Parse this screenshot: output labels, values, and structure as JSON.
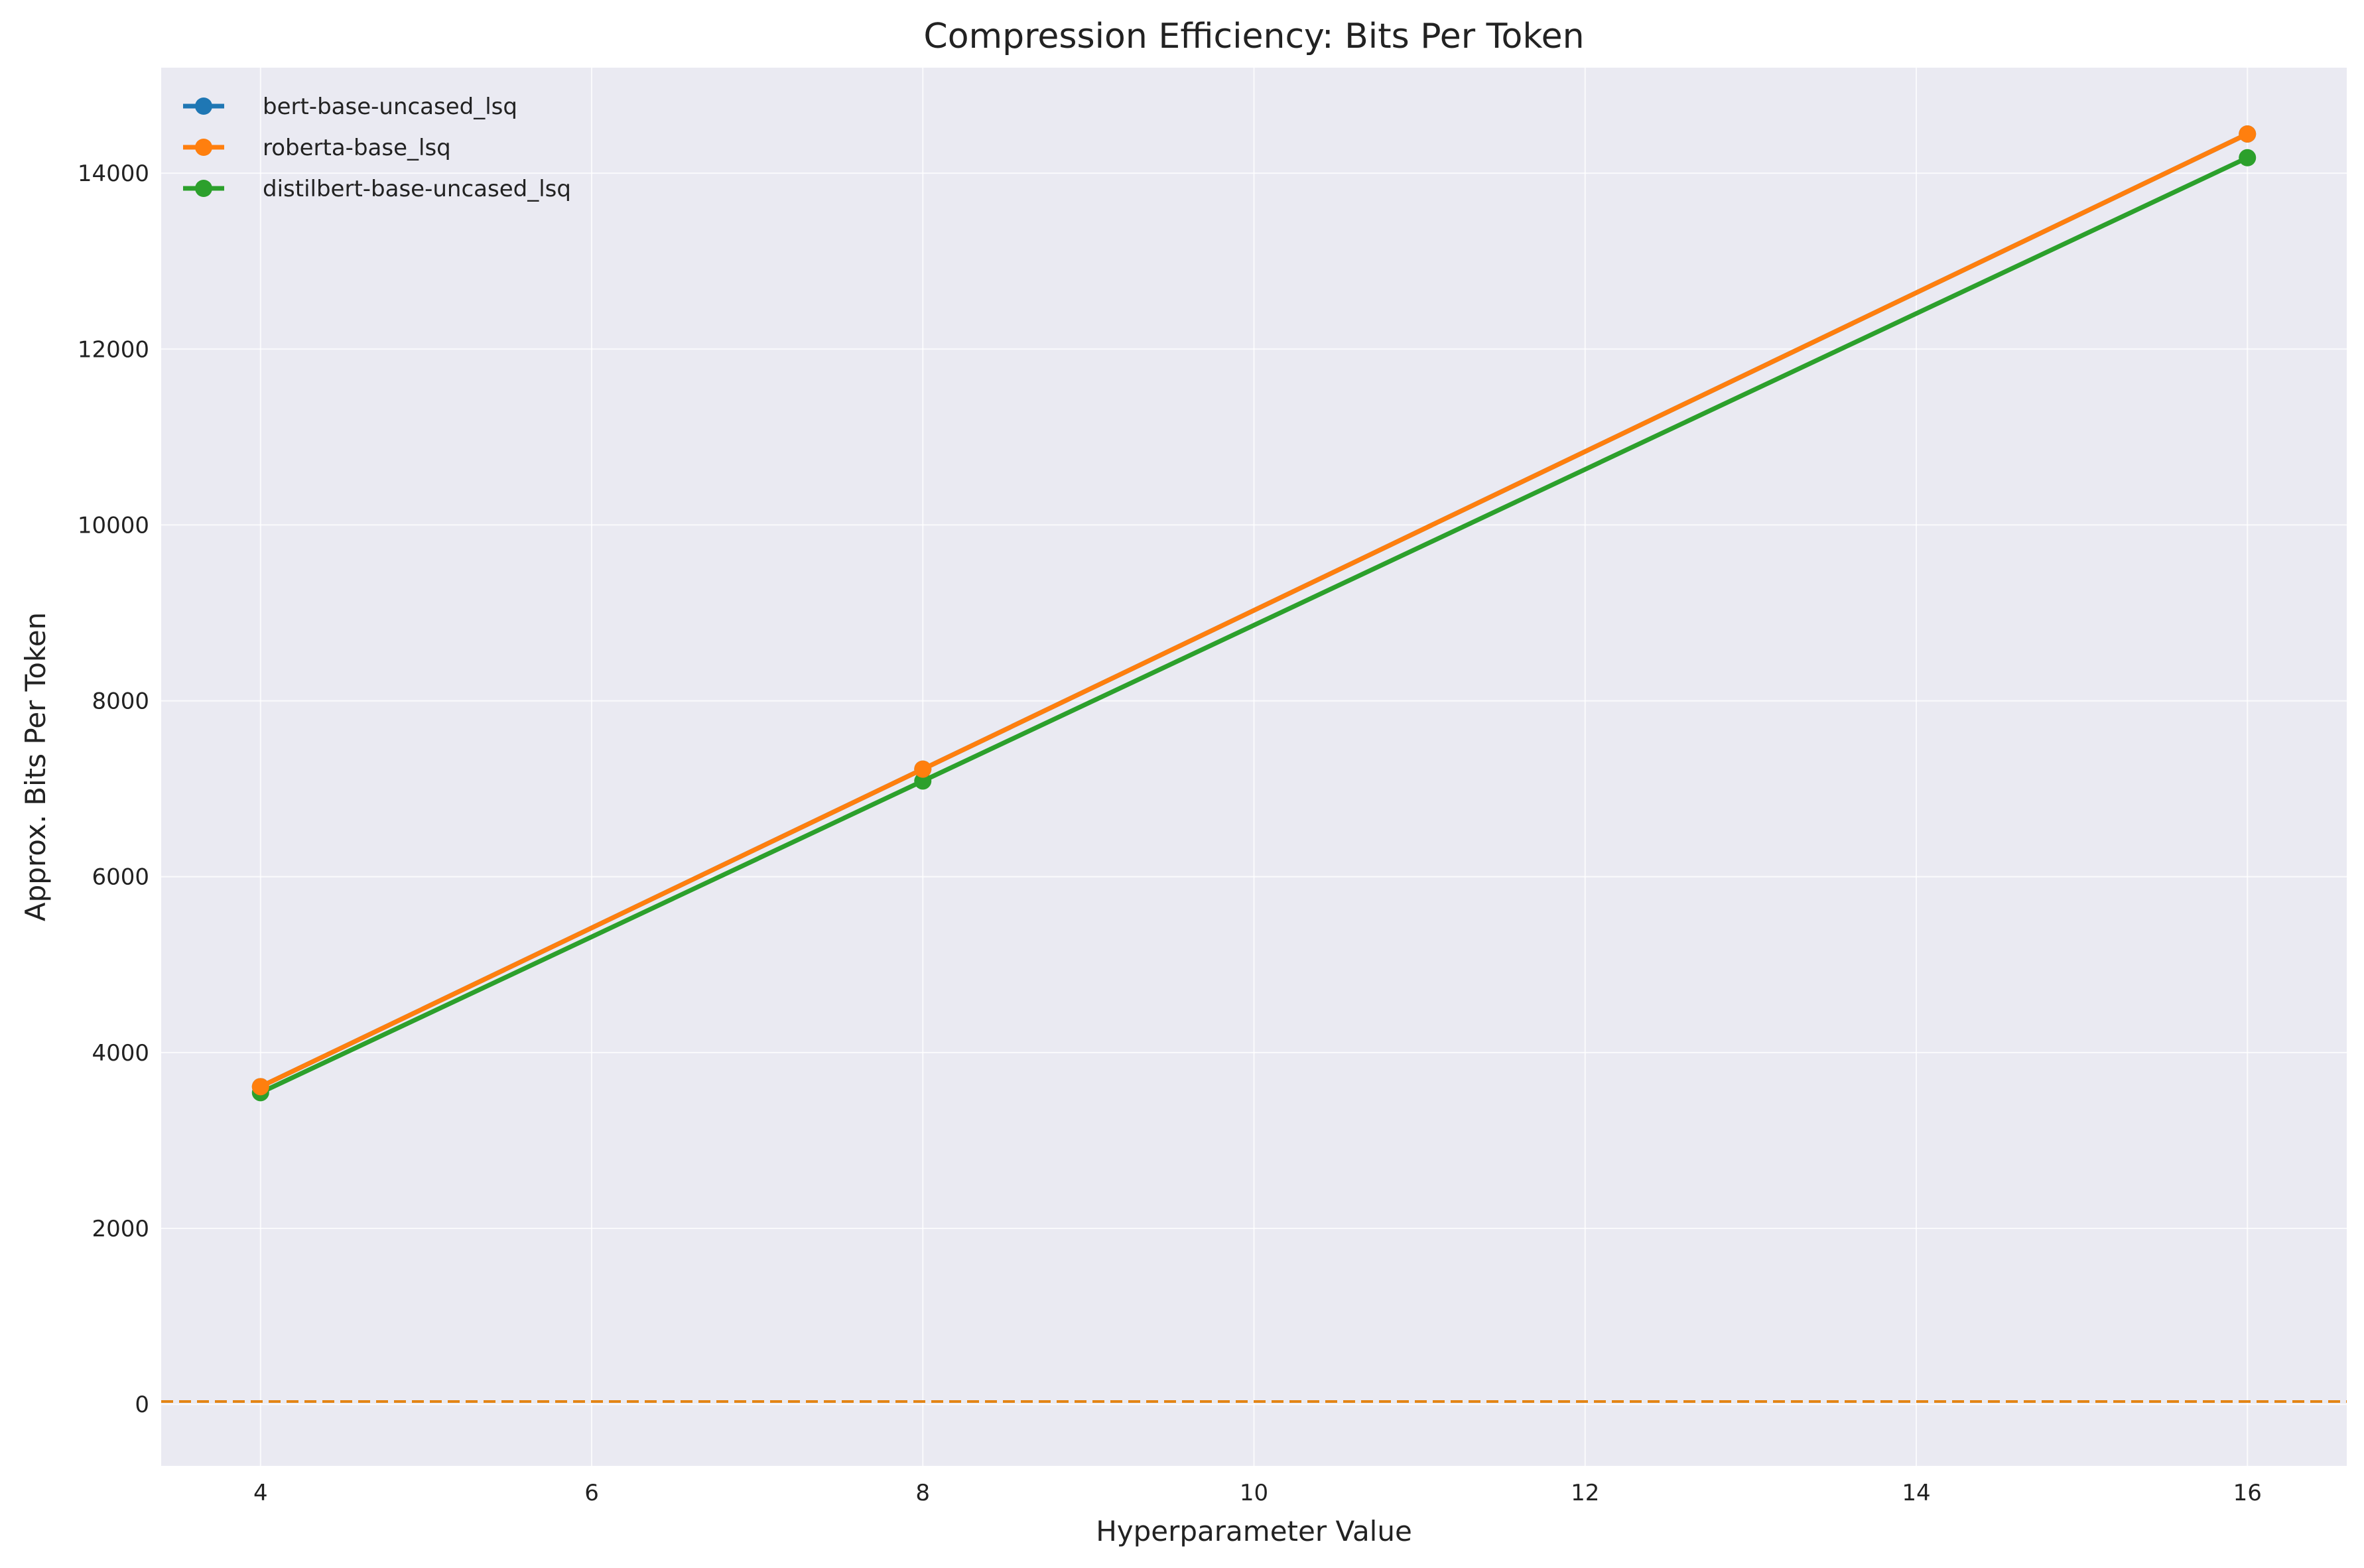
{
  "chart_data": {
    "type": "line",
    "title": "Compression Efficiency: Bits Per Token",
    "xlabel": "Hyperparameter Value",
    "ylabel": "Approx. Bits Per Token",
    "xlim": [
      3.4,
      16.6
    ],
    "ylim": [
      -700,
      15200
    ],
    "xticks": [
      4,
      6,
      8,
      10,
      12,
      14,
      16
    ],
    "yticks": [
      0,
      2000,
      4000,
      6000,
      8000,
      10000,
      12000,
      14000
    ],
    "grid": true,
    "legend_position": "top-left",
    "series": [
      {
        "name": "bert-base-uncased_lsq",
        "color": "#1f77b4",
        "x": [
          4,
          8,
          16
        ],
        "y": [
          3612,
          7223,
          14446
        ]
      },
      {
        "name": "roberta-base_lsq",
        "color": "#ff7f0e",
        "x": [
          4,
          8,
          16
        ],
        "y": [
          3612,
          7223,
          14446
        ]
      },
      {
        "name": "distilbert-base-uncased_lsq",
        "color": "#2ca02c",
        "x": [
          4,
          8,
          16
        ],
        "y": [
          3544,
          7088,
          14176
        ]
      }
    ],
    "reference_lines": [
      {
        "y": 32,
        "color": "#2ca02c",
        "style": "dashed"
      },
      {
        "y": 32,
        "color": "#ff7f0e",
        "style": "dashed"
      }
    ]
  }
}
